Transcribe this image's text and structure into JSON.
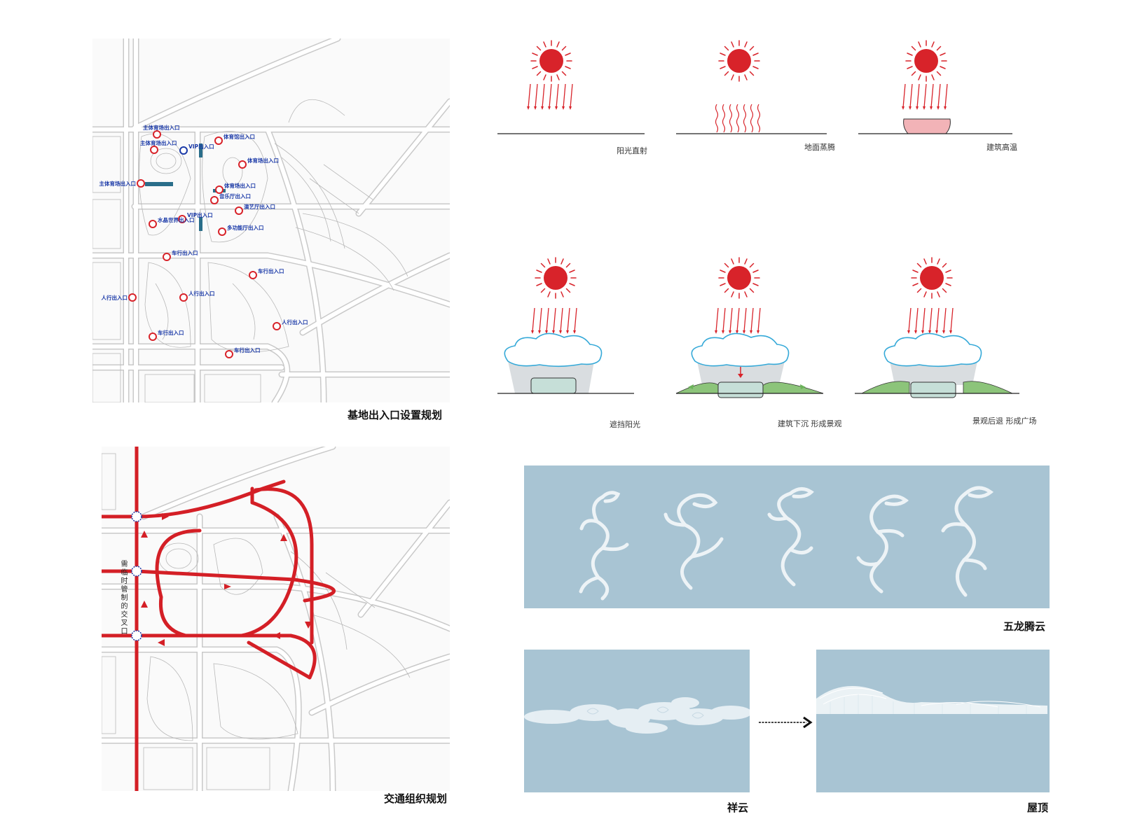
{
  "site_map": {
    "caption": "基地出入口设置规划",
    "entrances": [
      {
        "label": "主体育场出入口",
        "type": "red"
      },
      {
        "label": "VIP出入口",
        "type": "blue"
      },
      {
        "label": "体育馆出入口",
        "type": "red"
      },
      {
        "label": "体育场出入口",
        "type": "red"
      },
      {
        "label": "主体育场出入口",
        "type": "red"
      },
      {
        "label": "主体育场出入口",
        "type": "red"
      },
      {
        "label": "体育场出入口",
        "type": "red"
      },
      {
        "label": "音乐厅出入口",
        "type": "red"
      },
      {
        "label": "演艺厅出入口",
        "type": "red"
      },
      {
        "label": "VIP出入口",
        "type": "red"
      },
      {
        "label": "水晶世界出入口",
        "type": "red"
      },
      {
        "label": "多功能厅出入口",
        "type": "red"
      },
      {
        "label": "车行出入口",
        "type": "red"
      },
      {
        "label": "车行出入口",
        "type": "red"
      },
      {
        "label": "人行出入口",
        "type": "red"
      },
      {
        "label": "人行出入口",
        "type": "red"
      },
      {
        "label": "人行出入口",
        "type": "red"
      },
      {
        "label": "车行出入口",
        "type": "red"
      },
      {
        "label": "车行出入口",
        "type": "red"
      }
    ]
  },
  "traffic_map": {
    "caption": "交通组织规划",
    "vertical_note": "需临时管制的交叉口"
  },
  "sun_diagrams": [
    {
      "caption": "阳光直射"
    },
    {
      "caption": "地面蒸腾"
    },
    {
      "caption": "建筑高温"
    },
    {
      "caption": "遮挡阳光"
    },
    {
      "caption": "建筑下沉  形成景观"
    },
    {
      "caption": "景观后退  形成广场"
    }
  ],
  "concept": {
    "dragons_caption": "五龙腾云",
    "cloud_caption": "祥云",
    "roof_caption": "屋顶"
  },
  "colors": {
    "sun": "#d8232a",
    "road_red": "#d41f26",
    "entrance_blue": "#1b3aa8",
    "panel_blue": "#a8c4d3",
    "cloud_outline": "#35a9d8",
    "landscape_green": "#8cc47a",
    "building_fill": "#c6dfd8",
    "hot_building": "#f2b3b7"
  }
}
